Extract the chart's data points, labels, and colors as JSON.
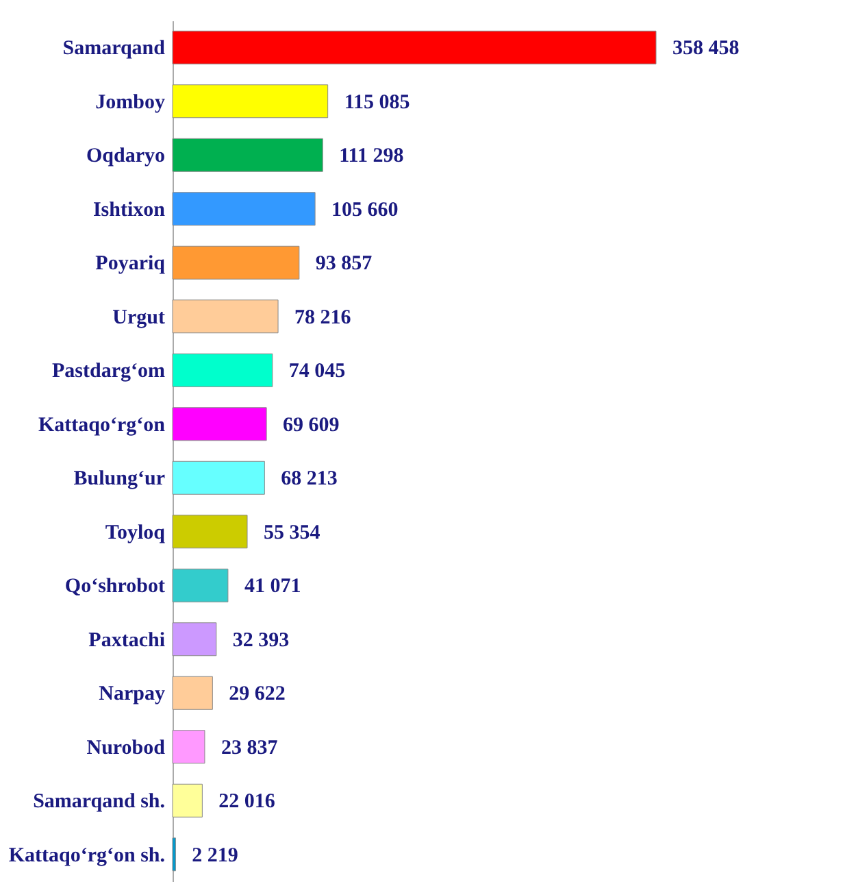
{
  "chart_data": {
    "type": "bar",
    "orientation": "horizontal",
    "tick_labels": "y",
    "categories": [
      "Samarqand",
      "Jomboy",
      "Oqdaryo",
      "Ishtixon",
      "Poyariq",
      "Urgut",
      "Pastdarg‘om",
      "Kattaqo‘rg‘on",
      "Bulung‘ur",
      "Toyloq",
      "Qo‘shrobot",
      "Paxtachi",
      "Narpay",
      "Nurobod",
      "Samarqand sh.",
      "Kattaqo‘rg‘on sh."
    ],
    "values": [
      358458,
      115085,
      111298,
      105660,
      93857,
      78216,
      74045,
      69609,
      68213,
      55354,
      41071,
      32393,
      29622,
      23837,
      22016,
      2219
    ],
    "value_labels": [
      "358 458",
      "115 085",
      "111 298",
      "105 660",
      "93 857",
      "78 216",
      "74 045",
      "69 609",
      "68 213",
      "55 354",
      "41 071",
      "32 393",
      "29 622",
      "23 837",
      "22 016",
      "2 219"
    ],
    "colors": [
      "#ff0000",
      "#ffff00",
      "#00b050",
      "#3399ff",
      "#ff9933",
      "#ffcc99",
      "#00ffcc",
      "#ff00ff",
      "#66ffff",
      "#cccc00",
      "#33cccc",
      "#cc99ff",
      "#ffcc99",
      "#ff99ff",
      "#ffff99",
      "#0099cc"
    ]
  }
}
